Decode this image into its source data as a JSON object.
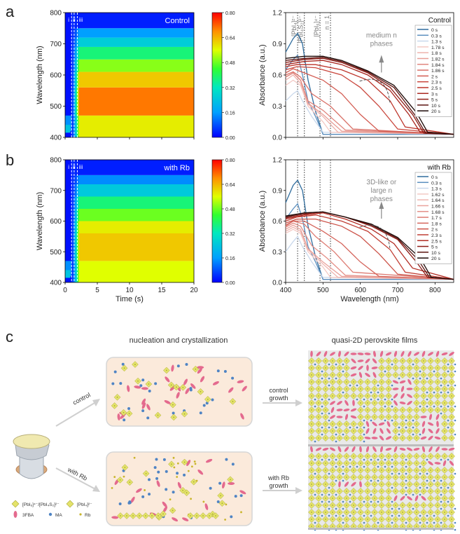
{
  "figure": {
    "panel_letters": {
      "a": "a",
      "b": "b",
      "c": "c"
    }
  },
  "chart_data": [
    {
      "id": "a-left",
      "type": "heatmap",
      "label": "Control",
      "xlabel": "",
      "ylabel": "Wavelength (nm)",
      "xlim": [
        0,
        20
      ],
      "ylim": [
        400,
        800
      ],
      "yticks": [
        "400",
        "500",
        "600",
        "700",
        "800"
      ],
      "xticks": [],
      "phase_markers": [
        "i",
        "ii",
        "iii"
      ],
      "marker_times": [
        1.0,
        1.4,
        1.9
      ],
      "colorbar": {
        "ticks": [
          "0.00",
          "0.16",
          "0.32",
          "0.48",
          "0.64",
          "0.80"
        ],
        "range": [
          0,
          0.8
        ]
      },
      "bands": [
        {
          "from": 400,
          "to": 470,
          "value": 0.58
        },
        {
          "from": 470,
          "to": 560,
          "value": 0.7
        },
        {
          "from": 560,
          "to": 610,
          "value": 0.62
        },
        {
          "from": 610,
          "to": 650,
          "value": 0.5
        },
        {
          "from": 650,
          "to": 690,
          "value": 0.38
        },
        {
          "from": 690,
          "to": 720,
          "value": 0.26
        },
        {
          "from": 720,
          "to": 750,
          "value": 0.16
        },
        {
          "from": 750,
          "to": 800,
          "value": 0.03
        }
      ]
    },
    {
      "id": "a-right",
      "type": "line",
      "label": "Control",
      "xlabel": "",
      "ylabel": "Absorbance (a.u.)",
      "xlim": [
        400,
        850
      ],
      "ylim": [
        0,
        1.2
      ],
      "yticks": [
        "0.0",
        "0.3",
        "0.6",
        "0.9",
        "1.2"
      ],
      "xticks": [],
      "vlines": [
        {
          "x": 432,
          "label": "[PbI₄]²⁻"
        },
        {
          "x": 450,
          "label": "[PbI₄S₂]²⁻"
        },
        {
          "x": 492,
          "label": "[PbI₆]⁴⁻"
        },
        {
          "x": 520,
          "label": "n = 1"
        }
      ],
      "annotation": "medium n phases",
      "legend_title": "",
      "legend_position": "right",
      "series": [
        {
          "name": "0 s",
          "color": "#2f6c9d",
          "x": [
            400,
            420,
            432,
            445,
            460,
            480,
            500,
            850
          ],
          "y": [
            0.82,
            0.95,
            1.0,
            0.9,
            0.55,
            0.25,
            0.03,
            0.03
          ]
        },
        {
          "name": "0.3 s",
          "color": "#5b8fbf",
          "x": [
            400,
            420,
            432,
            445,
            460,
            480,
            500,
            850
          ],
          "y": [
            0.65,
            0.75,
            0.79,
            0.6,
            0.35,
            0.2,
            0.03,
            0.03
          ]
        },
        {
          "name": "1.3 s",
          "color": "#c9d8ec",
          "x": [
            400,
            420,
            432,
            445,
            470,
            500,
            850
          ],
          "y": [
            0.35,
            0.42,
            0.45,
            0.35,
            0.2,
            0.05,
            0.03
          ]
        },
        {
          "name": "1.78 s",
          "color": "#f3c9c4",
          "x": [
            400,
            420,
            440,
            460,
            500,
            520,
            850
          ],
          "y": [
            0.5,
            0.55,
            0.5,
            0.3,
            0.15,
            0.05,
            0.03
          ]
        },
        {
          "name": "1.8 s",
          "color": "#eeb2ac",
          "x": [
            400,
            420,
            440,
            460,
            500,
            540,
            850
          ],
          "y": [
            0.55,
            0.6,
            0.52,
            0.32,
            0.2,
            0.05,
            0.03
          ]
        },
        {
          "name": "1.82 s",
          "color": "#e79d96",
          "x": [
            400,
            420,
            440,
            460,
            500,
            550,
            850
          ],
          "y": [
            0.58,
            0.62,
            0.55,
            0.33,
            0.22,
            0.06,
            0.03
          ]
        },
        {
          "name": "1.84 s",
          "color": "#e0877f",
          "x": [
            400,
            420,
            440,
            460,
            500,
            560,
            850
          ],
          "y": [
            0.58,
            0.62,
            0.55,
            0.35,
            0.26,
            0.07,
            0.03
          ]
        },
        {
          "name": "1.86 s",
          "color": "#d97168",
          "x": [
            400,
            420,
            440,
            470,
            520,
            580,
            850
          ],
          "y": [
            0.6,
            0.63,
            0.58,
            0.42,
            0.3,
            0.08,
            0.03
          ]
        },
        {
          "name": "2 s",
          "color": "#d35c52",
          "x": [
            400,
            420,
            450,
            500,
            550,
            600,
            650,
            850
          ],
          "y": [
            0.62,
            0.66,
            0.62,
            0.55,
            0.42,
            0.22,
            0.06,
            0.03
          ]
        },
        {
          "name": "2.3 s",
          "color": "#c9463c",
          "x": [
            400,
            430,
            480,
            550,
            600,
            650,
            700,
            850
          ],
          "y": [
            0.65,
            0.68,
            0.67,
            0.6,
            0.48,
            0.3,
            0.08,
            0.03
          ]
        },
        {
          "name": "2.5 s",
          "color": "#bd3329",
          "x": [
            400,
            430,
            480,
            550,
            620,
            680,
            720,
            850
          ],
          "y": [
            0.68,
            0.7,
            0.7,
            0.65,
            0.55,
            0.35,
            0.1,
            0.03
          ]
        },
        {
          "name": "3 s",
          "color": "#a9261e",
          "x": [
            400,
            450,
            500,
            550,
            620,
            680,
            730,
            760,
            850
          ],
          "y": [
            0.7,
            0.73,
            0.74,
            0.7,
            0.6,
            0.45,
            0.22,
            0.05,
            0.03
          ]
        },
        {
          "name": "5 s",
          "color": "#8e1d17",
          "x": [
            400,
            450,
            500,
            550,
            620,
            680,
            740,
            770,
            850
          ],
          "y": [
            0.72,
            0.75,
            0.76,
            0.72,
            0.62,
            0.48,
            0.22,
            0.04,
            0.03
          ]
        },
        {
          "name": "10 s",
          "color": "#5c1410",
          "x": [
            400,
            450,
            500,
            550,
            620,
            690,
            745,
            775,
            850
          ],
          "y": [
            0.74,
            0.76,
            0.77,
            0.73,
            0.63,
            0.48,
            0.22,
            0.04,
            0.03
          ]
        },
        {
          "name": "20 s",
          "color": "#1d0a08",
          "x": [
            400,
            450,
            500,
            550,
            620,
            690,
            750,
            780,
            850
          ],
          "y": [
            0.76,
            0.78,
            0.78,
            0.74,
            0.64,
            0.5,
            0.24,
            0.05,
            0.03
          ]
        }
      ]
    },
    {
      "id": "b-left",
      "type": "heatmap",
      "label": "with Rb",
      "xlabel": "Time (s)",
      "ylabel": "Wavelength (nm)",
      "xlim": [
        0,
        20
      ],
      "ylim": [
        400,
        800
      ],
      "yticks": [
        "400",
        "500",
        "600",
        "700",
        "800"
      ],
      "xticks": [
        "0",
        "5",
        "10",
        "15",
        "20"
      ],
      "phase_markers": [
        "i",
        "ii",
        "iii"
      ],
      "marker_times": [
        1.0,
        1.4,
        1.9
      ],
      "colorbar": {
        "ticks": [
          "0.00",
          "0.16",
          "0.32",
          "0.48",
          "0.64",
          "0.80"
        ],
        "range": [
          0,
          0.8
        ]
      },
      "bands": [
        {
          "from": 400,
          "to": 470,
          "value": 0.56
        },
        {
          "from": 470,
          "to": 560,
          "value": 0.62
        },
        {
          "from": 560,
          "to": 600,
          "value": 0.58
        },
        {
          "from": 600,
          "to": 640,
          "value": 0.48
        },
        {
          "from": 640,
          "to": 680,
          "value": 0.38
        },
        {
          "from": 680,
          "to": 720,
          "value": 0.25
        },
        {
          "from": 720,
          "to": 750,
          "value": 0.14
        },
        {
          "from": 750,
          "to": 800,
          "value": 0.03
        }
      ]
    },
    {
      "id": "b-right",
      "type": "line",
      "label": "with Rb",
      "xlabel": "Wavelength (nm)",
      "ylabel": "Absorbance (a.u.)",
      "xlim": [
        400,
        850
      ],
      "ylim": [
        0,
        1.2
      ],
      "yticks": [
        "0.0",
        "0.3",
        "0.6",
        "0.9",
        "1.2"
      ],
      "xticks": [
        "400",
        "500",
        "600",
        "700",
        "800"
      ],
      "vlines": [
        {
          "x": 432,
          "label": ""
        },
        {
          "x": 450,
          "label": ""
        },
        {
          "x": 492,
          "label": ""
        },
        {
          "x": 520,
          "label": ""
        }
      ],
      "annotation": "3D-like or large n phases",
      "legend_position": "right",
      "series": [
        {
          "name": "0 s",
          "color": "#2f6c9d",
          "x": [
            400,
            420,
            432,
            445,
            460,
            480,
            500,
            850
          ],
          "y": [
            0.78,
            0.95,
            1.0,
            0.9,
            0.55,
            0.25,
            0.03,
            0.03
          ]
        },
        {
          "name": "0.3 s",
          "color": "#5b8fbf",
          "x": [
            400,
            420,
            432,
            445,
            460,
            480,
            500,
            850
          ],
          "y": [
            0.62,
            0.72,
            0.77,
            0.62,
            0.35,
            0.2,
            0.03,
            0.03
          ]
        },
        {
          "name": "1.3 s",
          "color": "#c9d8ec",
          "x": [
            400,
            420,
            432,
            445,
            470,
            500,
            850
          ],
          "y": [
            0.3,
            0.4,
            0.45,
            0.35,
            0.2,
            0.05,
            0.03
          ]
        },
        {
          "name": "1.62 s",
          "color": "#f3c9c4",
          "x": [
            400,
            420,
            440,
            460,
            500,
            520,
            850
          ],
          "y": [
            0.48,
            0.52,
            0.48,
            0.3,
            0.15,
            0.05,
            0.03
          ]
        },
        {
          "name": "1.64 s",
          "color": "#efb6b0",
          "x": [
            400,
            420,
            440,
            460,
            500,
            540,
            850
          ],
          "y": [
            0.5,
            0.54,
            0.5,
            0.32,
            0.18,
            0.05,
            0.03
          ]
        },
        {
          "name": "1.66 s",
          "color": "#eaa39c",
          "x": [
            400,
            420,
            440,
            460,
            500,
            550,
            850
          ],
          "y": [
            0.52,
            0.56,
            0.52,
            0.33,
            0.2,
            0.06,
            0.03
          ]
        },
        {
          "name": "1.68 s",
          "color": "#e48f87",
          "x": [
            400,
            420,
            440,
            470,
            510,
            560,
            850
          ],
          "y": [
            0.54,
            0.58,
            0.55,
            0.36,
            0.24,
            0.07,
            0.03
          ]
        },
        {
          "name": "1.7 s",
          "color": "#dd7b72",
          "x": [
            400,
            420,
            450,
            480,
            530,
            580,
            850
          ],
          "y": [
            0.55,
            0.6,
            0.57,
            0.45,
            0.3,
            0.1,
            0.03
          ]
        },
        {
          "name": "1.8 s",
          "color": "#d5665d",
          "x": [
            400,
            420,
            450,
            500,
            550,
            600,
            650,
            850
          ],
          "y": [
            0.56,
            0.6,
            0.6,
            0.5,
            0.38,
            0.2,
            0.06,
            0.03
          ]
        },
        {
          "name": "2 s",
          "color": "#cc5248",
          "x": [
            400,
            430,
            480,
            550,
            600,
            650,
            700,
            850
          ],
          "y": [
            0.58,
            0.62,
            0.62,
            0.55,
            0.45,
            0.28,
            0.08,
            0.03
          ]
        },
        {
          "name": "2.3 s",
          "color": "#c13e34",
          "x": [
            400,
            430,
            480,
            550,
            620,
            680,
            720,
            850
          ],
          "y": [
            0.6,
            0.64,
            0.66,
            0.6,
            0.5,
            0.32,
            0.1,
            0.03
          ]
        },
        {
          "name": "2.5 s",
          "color": "#b12c23",
          "x": [
            400,
            450,
            500,
            560,
            630,
            690,
            740,
            850
          ],
          "y": [
            0.62,
            0.66,
            0.68,
            0.62,
            0.52,
            0.38,
            0.14,
            0.03
          ]
        },
        {
          "name": "5 s",
          "color": "#8e1d17",
          "x": [
            400,
            450,
            500,
            560,
            630,
            700,
            750,
            780,
            850
          ],
          "y": [
            0.63,
            0.67,
            0.69,
            0.64,
            0.55,
            0.42,
            0.2,
            0.05,
            0.03
          ]
        },
        {
          "name": "10 s",
          "color": "#5c1410",
          "x": [
            400,
            450,
            500,
            560,
            630,
            700,
            755,
            785,
            850
          ],
          "y": [
            0.64,
            0.68,
            0.69,
            0.64,
            0.56,
            0.43,
            0.22,
            0.05,
            0.03
          ]
        },
        {
          "name": "20 s",
          "color": "#1d0a08",
          "x": [
            400,
            450,
            500,
            560,
            630,
            700,
            760,
            790,
            850
          ],
          "y": [
            0.65,
            0.68,
            0.69,
            0.64,
            0.57,
            0.44,
            0.24,
            0.05,
            0.03
          ]
        }
      ]
    }
  ],
  "schematic": {
    "title_left": "nucleation and crystallization",
    "title_right": "quasi-2D perovskite films",
    "arrow_control": "control",
    "arrow_rb": "with Rb",
    "growth_control_1": "control",
    "growth_control_2": "growth",
    "growth_rb_1": "with Rb",
    "growth_rb_2": "growth",
    "legend": {
      "item1": "[PbI₆]⁴⁻/[PbI₄S₂]²⁻",
      "item2": "[PbI₄]²⁻",
      "item3": "3FBA",
      "item4": "MA",
      "item5": "Rb"
    },
    "colors": {
      "box_fill": "#fbeadb",
      "box_stroke": "#d6d6d6",
      "octahedron": "#e4e36a",
      "octa_dark": "#a9a835",
      "pink": "#e46a8e",
      "ma": "#4f84c4",
      "rb": "#c9b52b",
      "film_base": "#bdbdbd"
    }
  }
}
